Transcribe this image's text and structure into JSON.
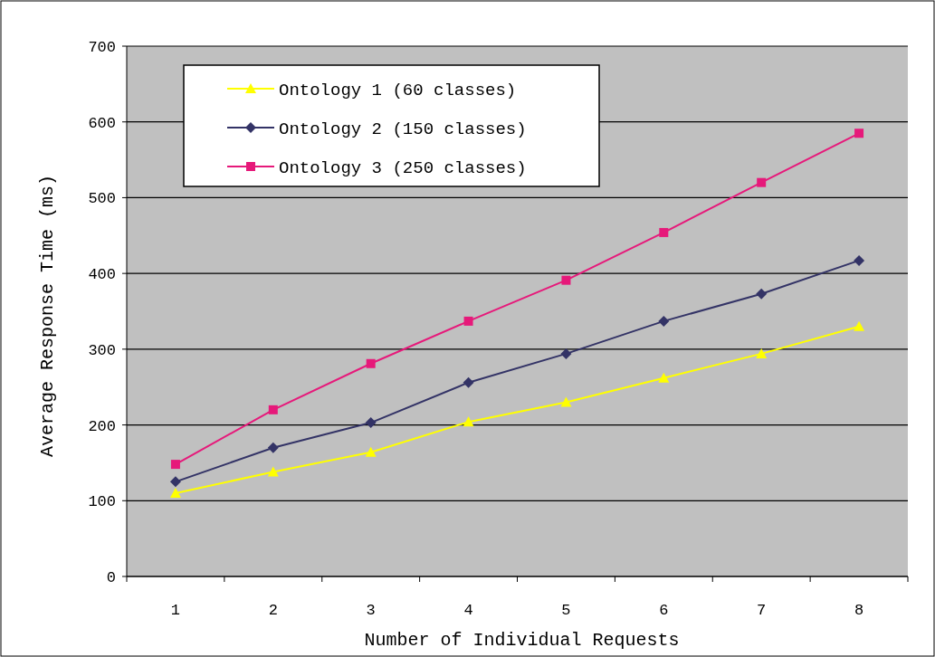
{
  "chart_data": {
    "type": "line",
    "xlabel": "Number of Individual Requests",
    "ylabel": "Average Response Time (ms)",
    "categories": [
      "1",
      "2",
      "3",
      "4",
      "5",
      "6",
      "7",
      "8"
    ],
    "series": [
      {
        "name": "Ontology 1 (60 classes)",
        "color": "#ffff00",
        "marker": "triangle",
        "values": [
          110,
          138,
          164,
          204,
          230,
          262,
          294,
          330
        ]
      },
      {
        "name": "Ontology 2 (150 classes)",
        "color": "#333366",
        "marker": "diamond",
        "values": [
          125,
          170,
          203,
          256,
          294,
          337,
          373,
          417
        ]
      },
      {
        "name": "Ontology 3 (250 classes)",
        "color": "#e6197a",
        "marker": "square",
        "values": [
          148,
          220,
          281,
          337,
          391,
          454,
          520,
          585
        ]
      }
    ],
    "ylim": [
      0,
      700
    ],
    "yticks": [
      0,
      100,
      200,
      300,
      400,
      500,
      600,
      700
    ],
    "grid": "y",
    "legend": "top left"
  }
}
